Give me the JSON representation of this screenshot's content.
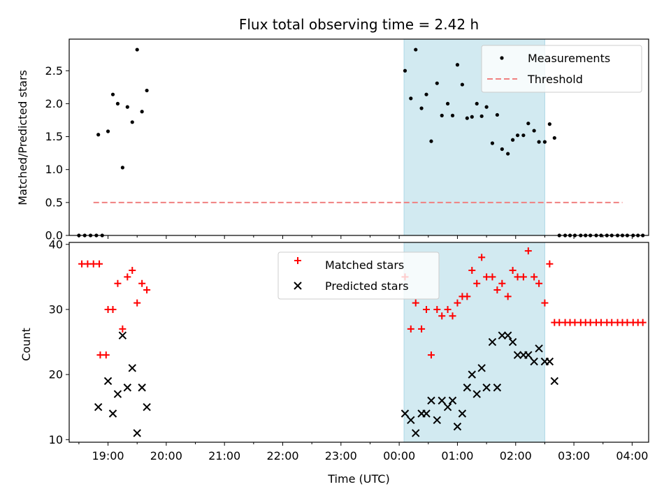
{
  "colors": {
    "measurement": "#000000",
    "threshold": "#f08080",
    "matched": "#ff0000",
    "predicted": "#000000",
    "shade": "#add8e6"
  },
  "chart_data": [
    {
      "type": "scatter",
      "title": "Flux total observing time = 2.42 h",
      "xlabel": "",
      "ylabel": "Matched/Predicted stars",
      "xlim": [
        "18:20",
        "04:17"
      ],
      "ylim": [
        0,
        2.98
      ],
      "yticks": [
        "0.0",
        "0.5",
        "1.0",
        "1.5",
        "2.0",
        "2.5"
      ],
      "shaded_region": {
        "x0": "00:05",
        "x1": "02:30"
      },
      "legend": {
        "position": "top-right",
        "entries": [
          "Measurements",
          "Threshold"
        ]
      },
      "series": [
        {
          "name": "Measurements",
          "marker": "dot",
          "points": [
            [
              "18:30",
              0
            ],
            [
              "18:36",
              0
            ],
            [
              "18:42",
              0
            ],
            [
              "18:48",
              0
            ],
            [
              "18:50",
              1.53
            ],
            [
              "18:54",
              0
            ],
            [
              "19:00",
              1.58
            ],
            [
              "19:05",
              2.14
            ],
            [
              "19:10",
              2.0
            ],
            [
              "19:15",
              1.03
            ],
            [
              "19:20",
              1.95
            ],
            [
              "19:25",
              1.72
            ],
            [
              "19:30",
              2.82
            ],
            [
              "19:35",
              1.88
            ],
            [
              "19:40",
              2.2
            ],
            [
              "00:06",
              2.5
            ],
            [
              "00:12",
              2.08
            ],
            [
              "00:17",
              2.82
            ],
            [
              "00:23",
              1.93
            ],
            [
              "00:28",
              2.14
            ],
            [
              "00:33",
              1.43
            ],
            [
              "00:39",
              2.31
            ],
            [
              "00:44",
              1.82
            ],
            [
              "00:50",
              2.0
            ],
            [
              "00:55",
              1.82
            ],
            [
              "01:00",
              2.59
            ],
            [
              "01:05",
              2.29
            ],
            [
              "01:10",
              1.78
            ],
            [
              "01:15",
              1.8
            ],
            [
              "01:20",
              2.0
            ],
            [
              "01:25",
              1.81
            ],
            [
              "01:30",
              1.95
            ],
            [
              "01:36",
              1.4
            ],
            [
              "01:41",
              1.83
            ],
            [
              "01:46",
              1.31
            ],
            [
              "01:52",
              1.24
            ],
            [
              "01:57",
              1.45
            ],
            [
              "02:02",
              1.52
            ],
            [
              "02:08",
              1.52
            ],
            [
              "02:13",
              1.7
            ],
            [
              "02:19",
              1.59
            ],
            [
              "02:24",
              1.42
            ],
            [
              "02:30",
              1.42
            ],
            [
              "02:35",
              1.69
            ],
            [
              "02:40",
              1.48
            ],
            [
              "02:45",
              0
            ],
            [
              "02:51",
              0
            ],
            [
              "02:56",
              0
            ],
            [
              "03:01",
              0
            ],
            [
              "03:07",
              0
            ],
            [
              "03:12",
              0
            ],
            [
              "03:17",
              0
            ],
            [
              "03:23",
              0
            ],
            [
              "03:28",
              0
            ],
            [
              "03:34",
              0
            ],
            [
              "03:39",
              0
            ],
            [
              "03:45",
              0
            ],
            [
              "03:50",
              0
            ],
            [
              "03:55",
              0
            ],
            [
              "04:01",
              0
            ],
            [
              "04:06",
              0
            ],
            [
              "04:11",
              0
            ]
          ]
        },
        {
          "name": "Threshold",
          "marker": "dashed-line",
          "points": [
            [
              "18:45",
              0.5
            ],
            [
              "03:50",
              0.5
            ]
          ]
        }
      ]
    },
    {
      "type": "scatter",
      "title": "",
      "xlabel": "Time (UTC)",
      "ylabel": "Count",
      "xlim": [
        "18:20",
        "04:17"
      ],
      "ylim": [
        9.6,
        40.3
      ],
      "yticks": [
        "10",
        "20",
        "30",
        "40"
      ],
      "xticks": [
        "19:00",
        "20:00",
        "21:00",
        "22:00",
        "23:00",
        "00:00",
        "01:00",
        "02:00",
        "03:00",
        "04:00"
      ],
      "shaded_region": {
        "x0": "00:05",
        "x1": "02:30"
      },
      "legend": {
        "position": "top-center",
        "entries": [
          "Matched stars",
          "Predicted stars"
        ]
      },
      "series": [
        {
          "name": "Matched stars",
          "marker": "plus",
          "points": [
            [
              "18:33",
              37
            ],
            [
              "18:39",
              37
            ],
            [
              "18:45",
              37
            ],
            [
              "18:51",
              37
            ],
            [
              "18:52",
              23
            ],
            [
              "18:58",
              23
            ],
            [
              "19:00",
              30
            ],
            [
              "19:05",
              30
            ],
            [
              "19:10",
              34
            ],
            [
              "19:15",
              27
            ],
            [
              "19:20",
              35
            ],
            [
              "19:25",
              36
            ],
            [
              "19:30",
              31
            ],
            [
              "19:35",
              34
            ],
            [
              "19:40",
              33
            ],
            [
              "00:06",
              35
            ],
            [
              "00:12",
              27
            ],
            [
              "00:17",
              31
            ],
            [
              "00:23",
              27
            ],
            [
              "00:28",
              30
            ],
            [
              "00:33",
              23
            ],
            [
              "00:39",
              30
            ],
            [
              "00:44",
              29
            ],
            [
              "00:50",
              30
            ],
            [
              "00:55",
              29
            ],
            [
              "01:00",
              31
            ],
            [
              "01:05",
              32
            ],
            [
              "01:10",
              32
            ],
            [
              "01:15",
              36
            ],
            [
              "01:20",
              34
            ],
            [
              "01:25",
              38
            ],
            [
              "01:30",
              35
            ],
            [
              "01:36",
              35
            ],
            [
              "01:41",
              33
            ],
            [
              "01:46",
              34
            ],
            [
              "01:52",
              32
            ],
            [
              "01:57",
              36
            ],
            [
              "02:02",
              35
            ],
            [
              "02:08",
              35
            ],
            [
              "02:13",
              39
            ],
            [
              "02:19",
              35
            ],
            [
              "02:24",
              34
            ],
            [
              "02:30",
              31
            ],
            [
              "02:35",
              37
            ],
            [
              "02:40",
              28
            ],
            [
              "02:45",
              28
            ],
            [
              "02:51",
              28
            ],
            [
              "02:56",
              28
            ],
            [
              "03:01",
              28
            ],
            [
              "03:07",
              28
            ],
            [
              "03:12",
              28
            ],
            [
              "03:17",
              28
            ],
            [
              "03:23",
              28
            ],
            [
              "03:28",
              28
            ],
            [
              "03:34",
              28
            ],
            [
              "03:39",
              28
            ],
            [
              "03:45",
              28
            ],
            [
              "03:50",
              28
            ],
            [
              "03:55",
              28
            ],
            [
              "04:01",
              28
            ],
            [
              "04:06",
              28
            ],
            [
              "04:11",
              28
            ]
          ]
        },
        {
          "name": "Predicted stars",
          "marker": "x",
          "points": [
            [
              "18:50",
              15
            ],
            [
              "19:00",
              19
            ],
            [
              "19:05",
              14
            ],
            [
              "19:10",
              17
            ],
            [
              "19:15",
              26
            ],
            [
              "19:20",
              18
            ],
            [
              "19:25",
              21
            ],
            [
              "19:30",
              11
            ],
            [
              "19:35",
              18
            ],
            [
              "19:40",
              15
            ],
            [
              "00:06",
              14
            ],
            [
              "00:12",
              13
            ],
            [
              "00:17",
              11
            ],
            [
              "00:23",
              14
            ],
            [
              "00:28",
              14
            ],
            [
              "00:33",
              16
            ],
            [
              "00:39",
              13
            ],
            [
              "00:44",
              16
            ],
            [
              "00:50",
              15
            ],
            [
              "00:55",
              16
            ],
            [
              "01:00",
              12
            ],
            [
              "01:05",
              14
            ],
            [
              "01:10",
              18
            ],
            [
              "01:15",
              20
            ],
            [
              "01:20",
              17
            ],
            [
              "01:25",
              21
            ],
            [
              "01:30",
              18
            ],
            [
              "01:36",
              25
            ],
            [
              "01:41",
              18
            ],
            [
              "01:46",
              26
            ],
            [
              "01:52",
              26
            ],
            [
              "01:57",
              25
            ],
            [
              "02:02",
              23
            ],
            [
              "02:08",
              23
            ],
            [
              "02:13",
              23
            ],
            [
              "02:19",
              22
            ],
            [
              "02:24",
              24
            ],
            [
              "02:30",
              22
            ],
            [
              "02:35",
              22
            ],
            [
              "02:40",
              19
            ]
          ]
        }
      ]
    }
  ]
}
